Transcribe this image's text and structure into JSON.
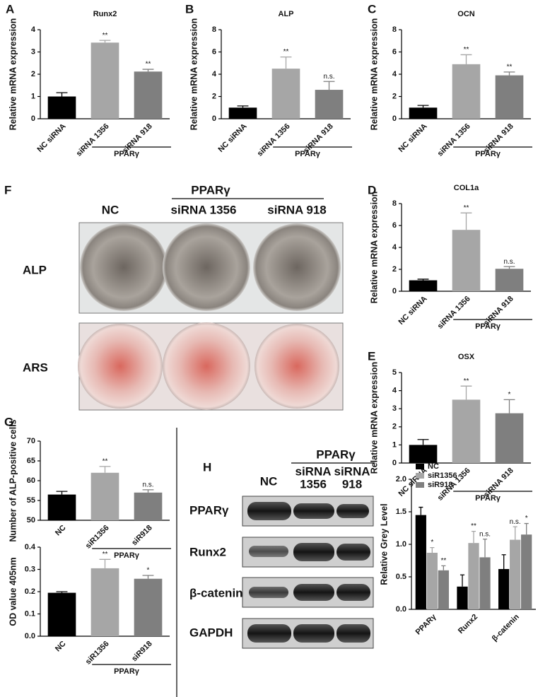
{
  "chart_data": [
    {
      "label": "A",
      "type": "bar",
      "title": "Runx2",
      "y_label": "Relative mRNA expression",
      "categories": [
        "NC siRNA",
        "siRNA 1356",
        "siRNA 918"
      ],
      "values": [
        1.0,
        3.42,
        2.12
      ],
      "errors": [
        0.17,
        0.1,
        0.1
      ],
      "colors": [
        "#000000",
        "#a6a6a6",
        "#7f7f7f"
      ],
      "annotations": [
        null,
        "**",
        "**"
      ],
      "group_label": "PPARγ",
      "ylim": [
        0,
        4
      ],
      "yticks": [
        0,
        1,
        2,
        3,
        4
      ]
    },
    {
      "label": "B",
      "type": "bar",
      "title": "ALP",
      "y_label": "Relative mRNA expression",
      "categories": [
        "NC siRNA",
        "siRNA 1356",
        "siRNA 918"
      ],
      "values": [
        1.0,
        4.5,
        2.6
      ],
      "errors": [
        0.15,
        1.05,
        0.75
      ],
      "colors": [
        "#000000",
        "#a6a6a6",
        "#7f7f7f"
      ],
      "annotations": [
        null,
        "**",
        "n.s."
      ],
      "group_label": "PPARγ",
      "ylim": [
        0,
        8
      ],
      "yticks": [
        0,
        2,
        4,
        6,
        8
      ]
    },
    {
      "label": "C",
      "type": "bar",
      "title": "OCN",
      "y_label": "Relative mRNA expression",
      "categories": [
        "NC siRNA",
        "siRNA 1356",
        "siRNA 918"
      ],
      "values": [
        1.0,
        4.9,
        3.9
      ],
      "errors": [
        0.2,
        0.85,
        0.3
      ],
      "colors": [
        "#000000",
        "#a6a6a6",
        "#7f7f7f"
      ],
      "annotations": [
        null,
        "**",
        "**"
      ],
      "group_label": "PPARγ",
      "ylim": [
        0,
        8
      ],
      "yticks": [
        0,
        2,
        4,
        6,
        8
      ]
    },
    {
      "label": "D",
      "type": "bar",
      "title": "COL1a",
      "y_label": "Relative mRNA expression",
      "categories": [
        "NC siRNA",
        "siRNA 1356",
        "siRNA 918"
      ],
      "values": [
        1.0,
        5.6,
        2.05
      ],
      "errors": [
        0.1,
        1.55,
        0.2
      ],
      "colors": [
        "#000000",
        "#a6a6a6",
        "#7f7f7f"
      ],
      "annotations": [
        null,
        "**",
        "n.s."
      ],
      "group_label": "PPARγ",
      "ylim": [
        0,
        8
      ],
      "yticks": [
        0,
        2,
        4,
        6,
        8
      ]
    },
    {
      "label": "E",
      "type": "bar",
      "title": "OSX",
      "y_label": "Relative mRNA expression",
      "categories": [
        "NC siRNA",
        "siRNA 1356",
        "siRNA 918"
      ],
      "values": [
        1.0,
        3.5,
        2.75
      ],
      "errors": [
        0.3,
        0.75,
        0.75
      ],
      "colors": [
        "#000000",
        "#a6a6a6",
        "#7f7f7f"
      ],
      "annotations": [
        null,
        "**",
        "*"
      ],
      "group_label": "PPARγ",
      "ylim": [
        0,
        5
      ],
      "yticks": [
        0,
        1,
        2,
        3,
        4,
        5
      ]
    },
    {
      "label": "G",
      "type": "bar",
      "y_label": "Number of ALP-positive cells",
      "categories": [
        "NC",
        "siR1356",
        "siR918"
      ],
      "values": [
        56.5,
        62,
        57
      ],
      "errors": [
        0.8,
        1.6,
        0.7
      ],
      "colors": [
        "#000000",
        "#a6a6a6",
        "#7f7f7f"
      ],
      "annotations": [
        null,
        "**",
        "n.s."
      ],
      "group_label": "PPARγ",
      "ylim": [
        50,
        70
      ],
      "yticks": [
        50,
        55,
        60,
        65,
        70
      ]
    },
    {
      "type": "bar",
      "y_label": "OD value 405nm",
      "categories": [
        "NC",
        "siR1356",
        "siR918"
      ],
      "values": [
        0.195,
        0.305,
        0.258
      ],
      "errors": [
        0.005,
        0.04,
        0.015
      ],
      "colors": [
        "#000000",
        "#a6a6a6",
        "#7f7f7f"
      ],
      "annotations": [
        null,
        "**",
        "*"
      ],
      "group_label": "PPARγ",
      "ylim": [
        0,
        0.4
      ],
      "yticks": [
        {
          "value": 0,
          "label": "0.0"
        },
        0.1,
        0.2,
        0.3,
        0.4
      ]
    },
    {
      "type": "bar",
      "y_label": "Relative Grey Level",
      "categories": [
        "PPARγ",
        "Runx2",
        "β-catenin"
      ],
      "legend": "upper left",
      "series": [
        {
          "name": "NC",
          "color": "#000000",
          "values": [
            1.45,
            0.35,
            0.62
          ],
          "errors": [
            0.12,
            0.18,
            0.22
          ],
          "annotations": [
            null,
            null,
            null
          ]
        },
        {
          "name": "siR1356",
          "color": "#a6a6a6",
          "values": [
            0.87,
            1.02,
            1.07
          ],
          "errors": [
            0.08,
            0.18,
            0.2
          ],
          "annotations": [
            "*",
            "**",
            "n.s."
          ]
        },
        {
          "name": "siR918",
          "color": "#7f7f7f",
          "values": [
            0.6,
            0.8,
            1.15
          ],
          "errors": [
            0.07,
            0.28,
            0.17
          ],
          "annotations": [
            "**",
            "n.s.",
            "*"
          ]
        }
      ],
      "ylim": [
        0,
        2
      ],
      "yticks": [
        {
          "value": 0,
          "label": "0.0"
        },
        0.5,
        {
          "value": 1,
          "label": "1.0"
        },
        1.5,
        {
          "value": 2,
          "label": "2.0"
        }
      ]
    }
  ],
  "panel_f": {
    "label": "F",
    "group_label": "PPARγ",
    "columns": [
      "NC",
      "siRNA 1356",
      "siRNA 918"
    ],
    "rows": [
      "ALP",
      "ARS"
    ]
  },
  "panel_h": {
    "label": "H",
    "group_label": "PPARγ",
    "columns": [
      "NC",
      [
        "siRNA",
        "1356"
      ],
      [
        "siRNA",
        "918"
      ]
    ],
    "rows": [
      "PPARγ",
      "Runx2",
      "β-catenin",
      "GAPDH"
    ]
  }
}
